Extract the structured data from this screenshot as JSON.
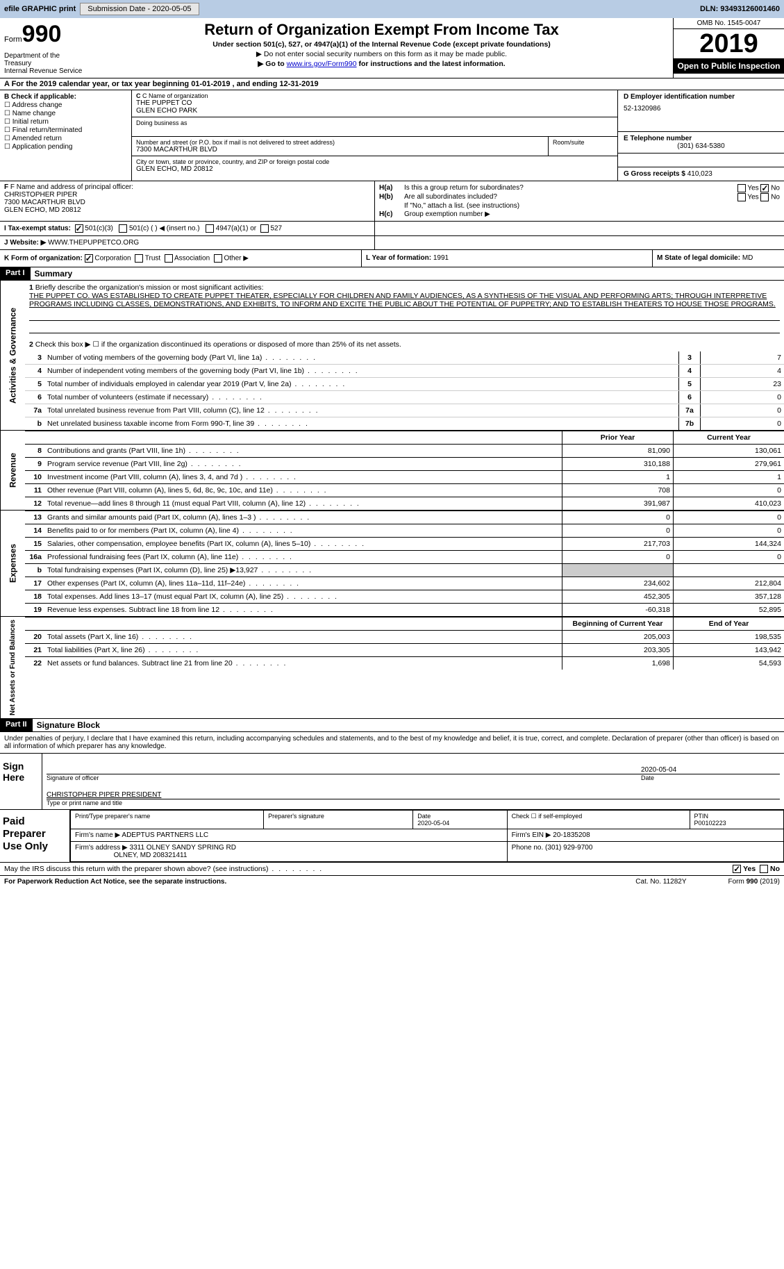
{
  "topbar": {
    "efile": "efile GRAPHIC print",
    "submission_label": "Submission Date - 2020-05-05",
    "dln": "DLN: 93493126001460"
  },
  "header": {
    "form_word": "Form",
    "form_num": "990",
    "dept": "Department of the Treasury\nInternal Revenue Service",
    "title": "Return of Organization Exempt From Income Tax",
    "subtitle": "Under section 501(c), 527, or 4947(a)(1) of the Internal Revenue Code (except private foundations)",
    "note1": "▶ Do not enter social security numbers on this form as it may be made public.",
    "note2_pre": "▶ Go to ",
    "note2_link": "www.irs.gov/Form990",
    "note2_post": " for instructions and the latest information.",
    "omb": "OMB No. 1545-0047",
    "year": "2019",
    "open": "Open to Public Inspection"
  },
  "period": "A For the 2019 calendar year, or tax year beginning 01-01-2019    , and ending 12-31-2019",
  "box_b": {
    "label": "B Check if applicable:",
    "items": [
      "Address change",
      "Name change",
      "Initial return",
      "Final return/terminated",
      "Amended return",
      "Application pending"
    ]
  },
  "box_c": {
    "name_lbl": "C Name of organization",
    "name1": "THE PUPPET CO",
    "name2": "GLEN ECHO PARK",
    "dba_lbl": "Doing business as",
    "addr_lbl": "Number and street (or P.O. box if mail is not delivered to street address)",
    "addr": "7300 MACARTHUR BLVD",
    "room_lbl": "Room/suite",
    "city_lbl": "City or town, state or province, country, and ZIP or foreign postal code",
    "city": "GLEN ECHO, MD  20812"
  },
  "box_d": {
    "ein_lbl": "D Employer identification number",
    "ein": "52-1320986",
    "tel_lbl": "E Telephone number",
    "tel": "(301) 634-5380",
    "gross_lbl": "G Gross receipts $",
    "gross": "410,023"
  },
  "box_f": {
    "lbl": "F Name and address of principal officer:",
    "name": "CHRISTOPHER PIPER",
    "addr1": "7300 MACARTHUR BLVD",
    "addr2": "GLEN ECHO, MD  20812"
  },
  "box_h": {
    "ha_lbl": "H(a)",
    "ha_txt": "Is this a group return for subordinates?",
    "ha_yes": "Yes",
    "ha_no": "No",
    "hb_lbl": "H(b)",
    "hb_txt": "Are all subordinates included?",
    "hb_note": "If \"No,\" attach a list. (see instructions)",
    "hc_lbl": "H(c)",
    "hc_txt": "Group exemption number ▶"
  },
  "box_i": {
    "lbl": "I   Tax-exempt status:",
    "o1": "501(c)(3)",
    "o2": "501(c) (  ) ◀ (insert no.)",
    "o3": "4947(a)(1) or",
    "o4": "527"
  },
  "box_j": {
    "lbl": "J   Website: ▶",
    "val": "WWW.THEPUPPETCO.ORG"
  },
  "box_k": {
    "lbl": "K Form of organization:",
    "o1": "Corporation",
    "o2": "Trust",
    "o3": "Association",
    "o4": "Other ▶"
  },
  "box_l": {
    "lbl": "L Year of formation:",
    "val": "1991"
  },
  "box_m": {
    "lbl": "M State of legal domicile:",
    "val": "MD"
  },
  "part1": {
    "hdr": "Part I",
    "title": "Summary",
    "l1_lbl": "1",
    "l1_txt": "Briefly describe the organization's mission or most significant activities:",
    "l1_body": "THE PUPPET CO. WAS ESTABLISHED TO CREATE PUPPET THEATER, ESPECIALLY FOR CHILDREN AND FAMILY AUDIENCES, AS A SYNTHESIS OF THE VISUAL AND PERFORMING ARTS; THROUGH INTERPRETIVE PROGRAMS INCLUDING CLASSES, DEMONSTRATIONS, AND EXHIBITS, TO INFORM AND EXCITE THE PUBLIC ABOUT THE POTENTIAL OF PUPPETRY; AND TO ESTABLISH THEATERS TO HOUSE THOSE PROGRAMS.",
    "l2_lbl": "2",
    "l2_txt": "Check this box ▶ ☐  if the organization discontinued its operations or disposed of more than 25% of its net assets.",
    "ag_tab": "Activities & Governance",
    "lines_ag": [
      {
        "n": "3",
        "t": "Number of voting members of the governing body (Part VI, line 1a)",
        "ln": "3",
        "v": "7"
      },
      {
        "n": "4",
        "t": "Number of independent voting members of the governing body (Part VI, line 1b)",
        "ln": "4",
        "v": "4"
      },
      {
        "n": "5",
        "t": "Total number of individuals employed in calendar year 2019 (Part V, line 2a)",
        "ln": "5",
        "v": "23"
      },
      {
        "n": "6",
        "t": "Total number of volunteers (estimate if necessary)",
        "ln": "6",
        "v": "0"
      },
      {
        "n": "7a",
        "t": "Total unrelated business revenue from Part VIII, column (C), line 12",
        "ln": "7a",
        "v": "0"
      },
      {
        "n": "b",
        "t": "Net unrelated business taxable income from Form 990-T, line 39",
        "ln": "7b",
        "v": "0"
      }
    ],
    "rev_tab": "Revenue",
    "hdr_prior": "Prior Year",
    "hdr_current": "Current Year",
    "rev_lines": [
      {
        "n": "8",
        "t": "Contributions and grants (Part VIII, line 1h)",
        "c1": "81,090",
        "c2": "130,061"
      },
      {
        "n": "9",
        "t": "Program service revenue (Part VIII, line 2g)",
        "c1": "310,188",
        "c2": "279,961"
      },
      {
        "n": "10",
        "t": "Investment income (Part VIII, column (A), lines 3, 4, and 7d )",
        "c1": "1",
        "c2": "1"
      },
      {
        "n": "11",
        "t": "Other revenue (Part VIII, column (A), lines 5, 6d, 8c, 9c, 10c, and 11e)",
        "c1": "708",
        "c2": "0"
      },
      {
        "n": "12",
        "t": "Total revenue—add lines 8 through 11 (must equal Part VIII, column (A), line 12)",
        "c1": "391,987",
        "c2": "410,023"
      }
    ],
    "exp_tab": "Expenses",
    "exp_lines": [
      {
        "n": "13",
        "t": "Grants and similar amounts paid (Part IX, column (A), lines 1–3 )",
        "c1": "0",
        "c2": "0"
      },
      {
        "n": "14",
        "t": "Benefits paid to or for members (Part IX, column (A), line 4)",
        "c1": "0",
        "c2": "0"
      },
      {
        "n": "15",
        "t": "Salaries, other compensation, employee benefits (Part IX, column (A), lines 5–10)",
        "c1": "217,703",
        "c2": "144,324"
      },
      {
        "n": "16a",
        "t": "Professional fundraising fees (Part IX, column (A), line 11e)",
        "c1": "0",
        "c2": "0"
      },
      {
        "n": "b",
        "t": "Total fundraising expenses (Part IX, column (D), line 25) ▶13,927",
        "c1": "",
        "c2": "",
        "shade": true
      },
      {
        "n": "17",
        "t": "Other expenses (Part IX, column (A), lines 11a–11d, 11f–24e)",
        "c1": "234,602",
        "c2": "212,804"
      },
      {
        "n": "18",
        "t": "Total expenses. Add lines 13–17 (must equal Part IX, column (A), line 25)",
        "c1": "452,305",
        "c2": "357,128"
      },
      {
        "n": "19",
        "t": "Revenue less expenses. Subtract line 18 from line 12",
        "c1": "-60,318",
        "c2": "52,895"
      }
    ],
    "na_tab": "Net Assets or Fund Balances",
    "hdr_begin": "Beginning of Current Year",
    "hdr_end": "End of Year",
    "na_lines": [
      {
        "n": "20",
        "t": "Total assets (Part X, line 16)",
        "c1": "205,003",
        "c2": "198,535"
      },
      {
        "n": "21",
        "t": "Total liabilities (Part X, line 26)",
        "c1": "203,305",
        "c2": "143,942"
      },
      {
        "n": "22",
        "t": "Net assets or fund balances. Subtract line 21 from line 20",
        "c1": "1,698",
        "c2": "54,593"
      }
    ]
  },
  "part2": {
    "hdr": "Part II",
    "title": "Signature Block",
    "intro": "Under penalties of perjury, I declare that I have examined this return, including accompanying schedules and statements, and to the best of my knowledge and belief, it is true, correct, and complete. Declaration of preparer (other than officer) is based on all information of which preparer has any knowledge.",
    "sign_here": "Sign Here",
    "sig_lbl": "Signature of officer",
    "sig_date": "2020-05-04",
    "date_lbl": "Date",
    "name_title": "CHRISTOPHER PIPER  PRESIDENT",
    "name_lbl": "Type or print name and title",
    "paid": "Paid Preparer Use Only",
    "p_name_lbl": "Print/Type preparer's name",
    "p_sig_lbl": "Preparer's signature",
    "p_date_lbl": "Date",
    "p_date": "2020-05-04",
    "p_chk_lbl": "Check ☐ if self-employed",
    "ptin_lbl": "PTIN",
    "ptin": "P00102223",
    "firm_name_lbl": "Firm's name    ▶",
    "firm_name": "ADEPTUS PARTNERS LLC",
    "firm_ein_lbl": "Firm's EIN ▶",
    "firm_ein": "20-1835208",
    "firm_addr_lbl": "Firm's address ▶",
    "firm_addr1": "3311 OLNEY SANDY SPRING RD",
    "firm_addr2": "OLNEY, MD  208321411",
    "phone_lbl": "Phone no.",
    "phone": "(301) 929-9700"
  },
  "irs_discuss": {
    "txt": "May the IRS discuss this return with the preparer shown above? (see instructions)",
    "yes": "Yes",
    "no": "No"
  },
  "footer": {
    "left": "For Paperwork Reduction Act Notice, see the separate instructions.",
    "cat": "Cat. No. 11282Y",
    "right": "Form 990 (2019)"
  },
  "colors": {
    "topbar_bg": "#b8cce4",
    "link": "#0000cc"
  }
}
